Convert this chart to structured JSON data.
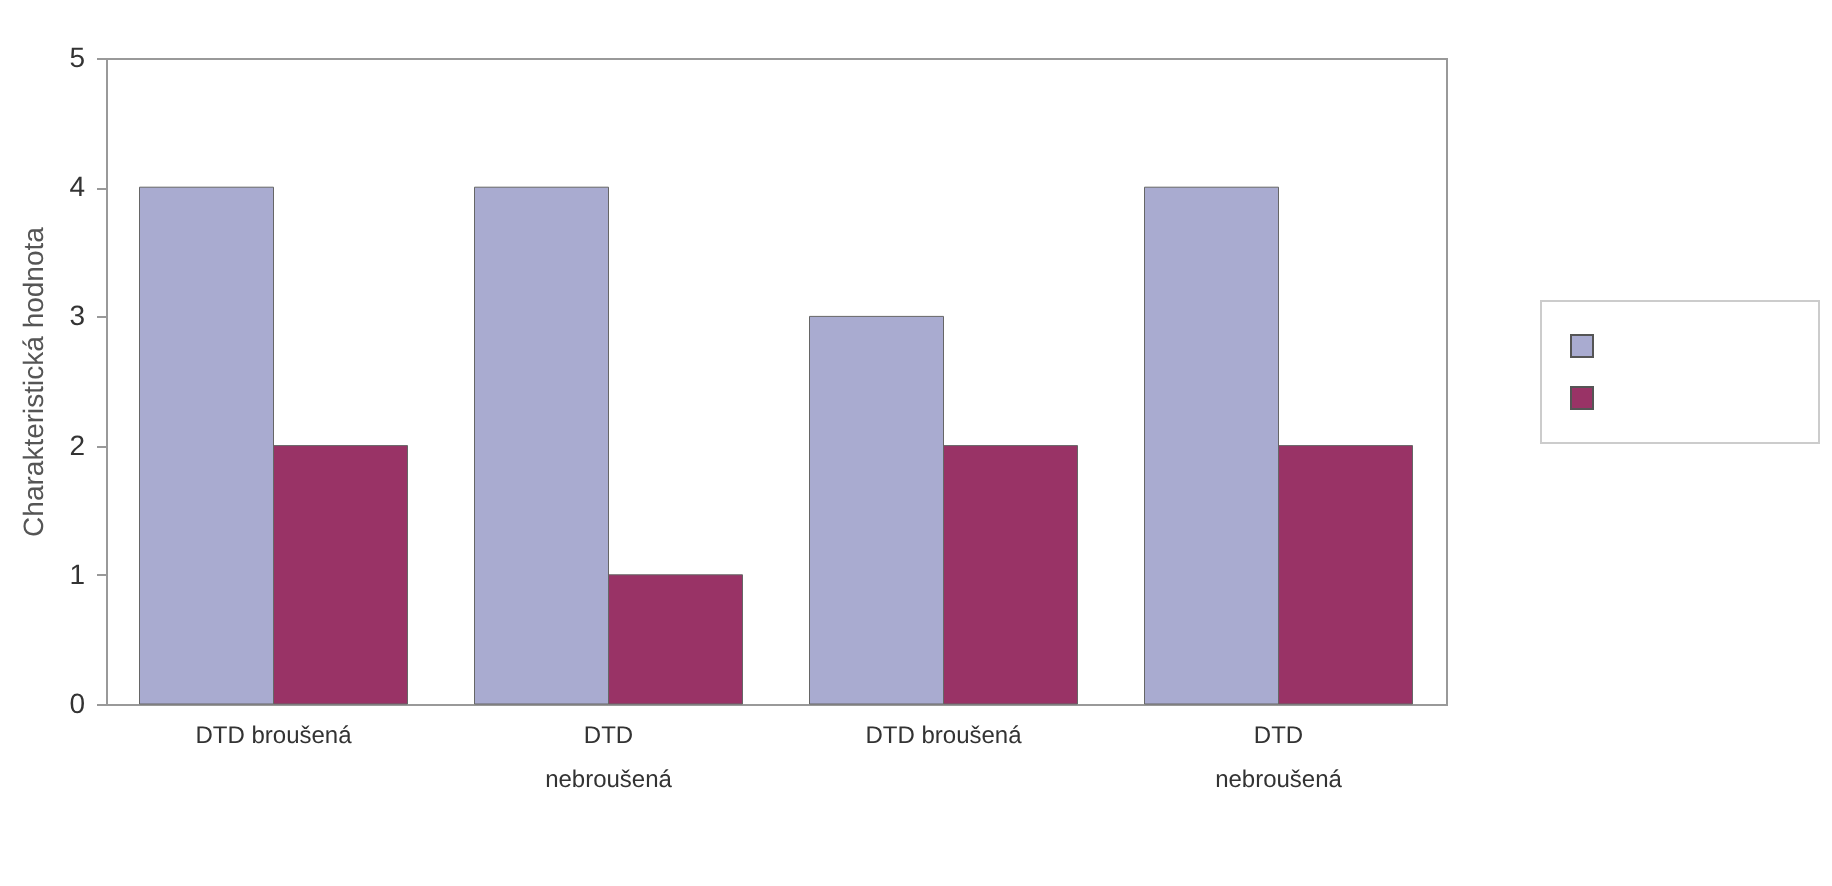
{
  "chart_data": {
    "type": "bar",
    "ylabel": "Charakteristická hodnota",
    "categories": [
      "DTD broušená",
      "DTD nebroušená",
      "DTD broušená",
      "DTD nebroušená"
    ],
    "series": [
      {
        "color": "#a9abd0",
        "values": [
          4,
          4,
          3,
          4
        ]
      },
      {
        "color": "#993366",
        "values": [
          2,
          1,
          2,
          2
        ]
      }
    ],
    "ylim": [
      0,
      5
    ],
    "yticks": [
      0,
      1,
      2,
      3,
      4,
      5
    ],
    "grid": false
  }
}
